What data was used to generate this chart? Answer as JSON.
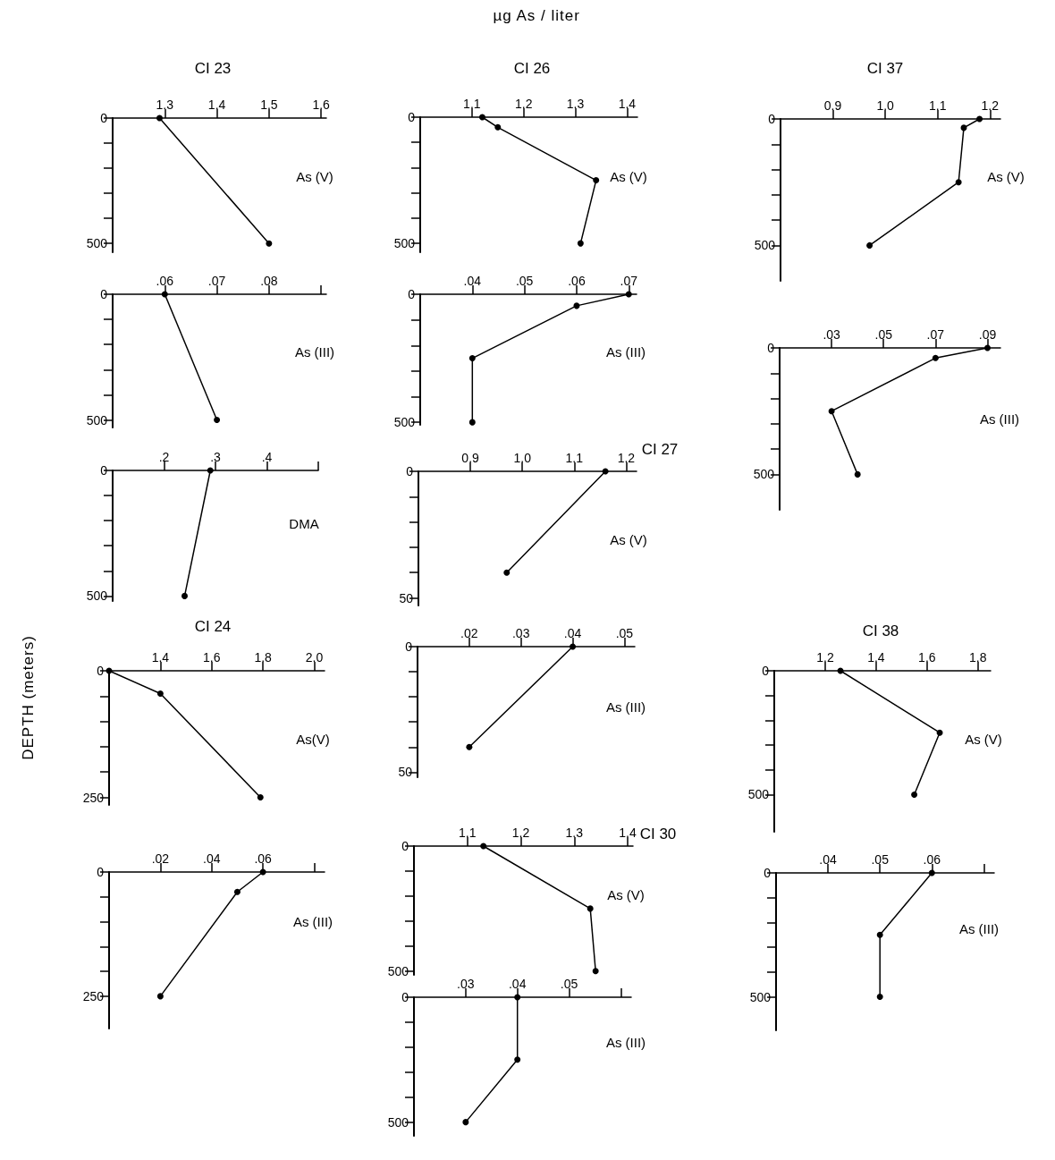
{
  "chart_data": [
    {
      "type": "line",
      "title": "CI 23",
      "annotations": [
        "As (V)",
        "µg As / liter",
        "DEPTH (meters)"
      ],
      "x": [
        1.29,
        1.5
      ],
      "values": [
        0,
        500
      ],
      "color": "#000000",
      "marker": "circle",
      "xlim": [
        1.2,
        1.61
      ],
      "xticks": [
        1.3,
        1.4,
        1.5,
        1.6
      ],
      "ylim": [
        535,
        0
      ],
      "yticks": [
        0,
        {
          "value": 100,
          "label": null
        },
        {
          "value": 200,
          "label": null
        },
        {
          "value": 300,
          "label": null
        },
        {
          "value": 400,
          "label": null
        },
        500
      ]
    },
    {
      "type": "line",
      "annotations": [
        "As (III)"
      ],
      "x": [
        0.06,
        0.07
      ],
      "values": [
        0,
        500
      ],
      "color": "#000000",
      "marker": "circle",
      "xlim": [
        0.05,
        0.091
      ],
      "xticks": [
        {
          "value": 0.06,
          "label": ".06"
        },
        {
          "value": 0.07,
          "label": ".07"
        },
        {
          "value": 0.08,
          "label": ".08"
        },
        {
          "value": 0.09,
          "label": null
        }
      ],
      "ylim": [
        530,
        0
      ],
      "yticks": [
        0,
        {
          "value": 100,
          "label": null
        },
        {
          "value": 200,
          "label": null
        },
        {
          "value": 300,
          "label": null
        },
        {
          "value": 400,
          "label": null
        },
        500
      ]
    },
    {
      "type": "line",
      "annotations": [
        "DMA"
      ],
      "x": [
        0.29,
        0.24
      ],
      "values": [
        0,
        500
      ],
      "color": "#000000",
      "marker": "circle",
      "xlim": [
        0.1,
        0.5
      ],
      "xticks": [
        {
          "value": 0.2,
          "label": ".2"
        },
        {
          "value": 0.3,
          "label": ".3"
        },
        {
          "value": 0.4,
          "label": ".4"
        },
        {
          "value": 0.5,
          "label": null
        }
      ],
      "ylim": [
        520,
        0
      ],
      "yticks": [
        0,
        {
          "value": 100,
          "label": null
        },
        {
          "value": 200,
          "label": null
        },
        {
          "value": 300,
          "label": null
        },
        {
          "value": 400,
          "label": null
        },
        500
      ]
    },
    {
      "type": "line",
      "title": "CI 24",
      "annotations": [
        "As(V)"
      ],
      "x": [
        1.2,
        1.4,
        1.79
      ],
      "values": [
        0,
        45,
        250
      ],
      "color": "#000000",
      "marker": "circle",
      "xlim": [
        1.2,
        2.04
      ],
      "xticks": [
        1.4,
        1.6,
        1.8,
        {
          "value": 2,
          "label": "2.0"
        }
      ],
      "ylim": [
        265,
        0
      ],
      "yticks": [
        0,
        {
          "value": 50,
          "label": null
        },
        {
          "value": 100,
          "label": null
        },
        {
          "value": 150,
          "label": null
        },
        {
          "value": 200,
          "label": null
        },
        250
      ]
    },
    {
      "type": "line",
      "annotations": [
        "As (III)"
      ],
      "x": [
        0.06,
        0.05,
        0.02
      ],
      "values": [
        0,
        40,
        250
      ],
      "color": "#000000",
      "marker": "circle",
      "xlim": [
        0,
        0.084
      ],
      "xticks": [
        {
          "value": 0.02,
          "label": ".02"
        },
        {
          "value": 0.04,
          "label": ".04"
        },
        {
          "value": 0.06,
          "label": ".06"
        },
        {
          "value": 0.08,
          "label": null
        }
      ],
      "ylim": [
        315,
        0
      ],
      "yticks": [
        0,
        {
          "value": 50,
          "label": null
        },
        {
          "value": 100,
          "label": null
        },
        {
          "value": 150,
          "label": null
        },
        {
          "value": 200,
          "label": null
        },
        250
      ]
    },
    {
      "type": "line",
      "title": "CI 26",
      "annotations": [
        "As (V)"
      ],
      "x": [
        1.12,
        1.15,
        1.34,
        1.31
      ],
      "values": [
        0,
        40,
        250,
        500
      ],
      "color": "#000000",
      "marker": "circle",
      "xlim": [
        1.0,
        1.42
      ],
      "xticks": [
        1.1,
        1.2,
        1.3,
        1.4
      ],
      "ylim": [
        535,
        0
      ],
      "yticks": [
        0,
        {
          "value": 100,
          "label": null
        },
        {
          "value": 200,
          "label": null
        },
        {
          "value": 300,
          "label": null
        },
        {
          "value": 400,
          "label": null
        },
        500
      ]
    },
    {
      "type": "line",
      "annotations": [
        "As (III)"
      ],
      "x": [
        0.07,
        0.06,
        0.04,
        0.04
      ],
      "values": [
        0,
        45,
        250,
        500
      ],
      "color": "#000000",
      "marker": "circle",
      "xlim": [
        0.03,
        0.0715
      ],
      "xticks": [
        {
          "value": 0.04,
          "label": ".04"
        },
        {
          "value": 0.05,
          "label": ".05"
        },
        {
          "value": 0.06,
          "label": ".06"
        },
        {
          "value": 0.07,
          "label": ".07"
        }
      ],
      "ylim": [
        510,
        0
      ],
      "yticks": [
        0,
        {
          "value": 100,
          "label": null
        },
        {
          "value": 200,
          "label": null
        },
        {
          "value": 300,
          "label": null
        },
        {
          "value": 400,
          "label": null
        },
        500
      ]
    },
    {
      "type": "line",
      "title": "CI 27",
      "annotations": [
        "As (V)"
      ],
      "x": [
        1.16,
        0.97
      ],
      "values": [
        0,
        40
      ],
      "color": "#000000",
      "marker": "circle",
      "xlim": [
        0.8,
        1.22
      ],
      "xticks": [
        0.9,
        {
          "value": 1,
          "label": "1.0"
        },
        1.1,
        1.2
      ],
      "ylim": [
        53,
        0
      ],
      "yticks": [
        0,
        {
          "value": 10,
          "label": null
        },
        {
          "value": 20,
          "label": null
        },
        {
          "value": 30,
          "label": null
        },
        {
          "value": 40,
          "label": null
        },
        50
      ]
    },
    {
      "type": "line",
      "annotations": [
        "As (III)"
      ],
      "x": [
        0.04,
        0.02
      ],
      "values": [
        0,
        40
      ],
      "color": "#000000",
      "marker": "circle",
      "xlim": [
        0.01,
        0.052
      ],
      "xticks": [
        {
          "value": 0.02,
          "label": ".02"
        },
        {
          "value": 0.03,
          "label": ".03"
        },
        {
          "value": 0.04,
          "label": ".04"
        },
        {
          "value": 0.05,
          "label": ".05"
        }
      ],
      "ylim": [
        52,
        0
      ],
      "yticks": [
        0,
        {
          "value": 10,
          "label": null
        },
        {
          "value": 20,
          "label": null
        },
        {
          "value": 30,
          "label": null
        },
        {
          "value": 40,
          "label": null
        },
        50
      ]
    },
    {
      "type": "line",
      "title": "CI 30",
      "annotations": [
        "As (V)"
      ],
      "x": [
        1.13,
        1.33,
        1.34
      ],
      "values": [
        0,
        250,
        500
      ],
      "color": "#000000",
      "marker": "circle",
      "xlim": [
        1.0,
        1.41
      ],
      "xticks": [
        1.1,
        1.2,
        1.3,
        1.4
      ],
      "ylim": [
        515,
        0
      ],
      "yticks": [
        0,
        {
          "value": 100,
          "label": null
        },
        {
          "value": 200,
          "label": null
        },
        {
          "value": 300,
          "label": null
        },
        {
          "value": 400,
          "label": null
        },
        500
      ]
    },
    {
      "type": "line",
      "annotations": [
        "As (III)"
      ],
      "x": [
        0.04,
        0.04,
        0.03
      ],
      "values": [
        0,
        250,
        500
      ],
      "color": "#000000",
      "marker": "circle",
      "xlim": [
        0.02,
        0.062
      ],
      "xticks": [
        {
          "value": 0.03,
          "label": ".03"
        },
        {
          "value": 0.04,
          "label": ".04"
        },
        {
          "value": 0.05,
          "label": ".05"
        },
        {
          "value": 0.06,
          "label": null
        }
      ],
      "ylim": [
        555,
        0
      ],
      "yticks": [
        0,
        {
          "value": 100,
          "label": null
        },
        {
          "value": 200,
          "label": null
        },
        {
          "value": 300,
          "label": null
        },
        {
          "value": 400,
          "label": null
        },
        500
      ]
    },
    {
      "type": "line",
      "title": "CI 37",
      "annotations": [
        "As (V)"
      ],
      "x": [
        1.18,
        1.15,
        1.14,
        0.97
      ],
      "values": [
        0,
        35,
        250,
        500
      ],
      "color": "#000000",
      "marker": "circle",
      "xlim": [
        0.8,
        1.22
      ],
      "xticks": [
        0.9,
        {
          "value": 1,
          "label": "1.0"
        },
        1.1,
        1.2
      ],
      "ylim": [
        640,
        0
      ],
      "yticks": [
        0,
        {
          "value": 100,
          "label": null
        },
        {
          "value": 200,
          "label": null
        },
        {
          "value": 300,
          "label": null
        },
        {
          "value": 400,
          "label": null
        },
        500
      ]
    },
    {
      "type": "line",
      "annotations": [
        "As (III)"
      ],
      "x": [
        0.09,
        0.07,
        0.03,
        0.04
      ],
      "values": [
        0,
        40,
        250,
        500
      ],
      "color": "#000000",
      "marker": "circle",
      "xlim": [
        0.01,
        0.095
      ],
      "xticks": [
        {
          "value": 0.03,
          "label": ".03"
        },
        {
          "value": 0.05,
          "label": ".05"
        },
        {
          "value": 0.07,
          "label": ".07"
        },
        {
          "value": 0.09,
          "label": ".09"
        }
      ],
      "ylim": [
        640,
        0
      ],
      "yticks": [
        0,
        {
          "value": 100,
          "label": null
        },
        {
          "value": 200,
          "label": null
        },
        {
          "value": 300,
          "label": null
        },
        {
          "value": 400,
          "label": null
        },
        500
      ]
    },
    {
      "type": "line",
      "title": "CI 38",
      "annotations": [
        "As (V)"
      ],
      "x": [
        1.26,
        1.65,
        1.55
      ],
      "values": [
        0,
        250,
        500
      ],
      "color": "#000000",
      "marker": "circle",
      "xlim": [
        1.0,
        1.85
      ],
      "xticks": [
        1.2,
        1.4,
        1.6,
        1.8
      ],
      "ylim": [
        650,
        0
      ],
      "yticks": [
        0,
        {
          "value": 100,
          "label": null
        },
        {
          "value": 200,
          "label": null
        },
        {
          "value": 300,
          "label": null
        },
        {
          "value": 400,
          "label": null
        },
        500
      ]
    },
    {
      "type": "line",
      "annotations": [
        "As (III)"
      ],
      "x": [
        0.06,
        0.05,
        0.05
      ],
      "values": [
        0,
        250,
        500
      ],
      "color": "#000000",
      "marker": "circle",
      "xlim": [
        0.03,
        0.072
      ],
      "xticks": [
        {
          "value": 0.04,
          "label": ".04"
        },
        {
          "value": 0.05,
          "label": ".05"
        },
        {
          "value": 0.06,
          "label": ".06"
        },
        {
          "value": 0.07,
          "label": null
        }
      ],
      "ylim": [
        635,
        0
      ],
      "yticks": [
        0,
        {
          "value": 100,
          "label": null
        },
        {
          "value": 200,
          "label": null
        },
        {
          "value": 300,
          "label": null
        },
        {
          "value": 400,
          "label": null
        },
        500
      ]
    }
  ]
}
